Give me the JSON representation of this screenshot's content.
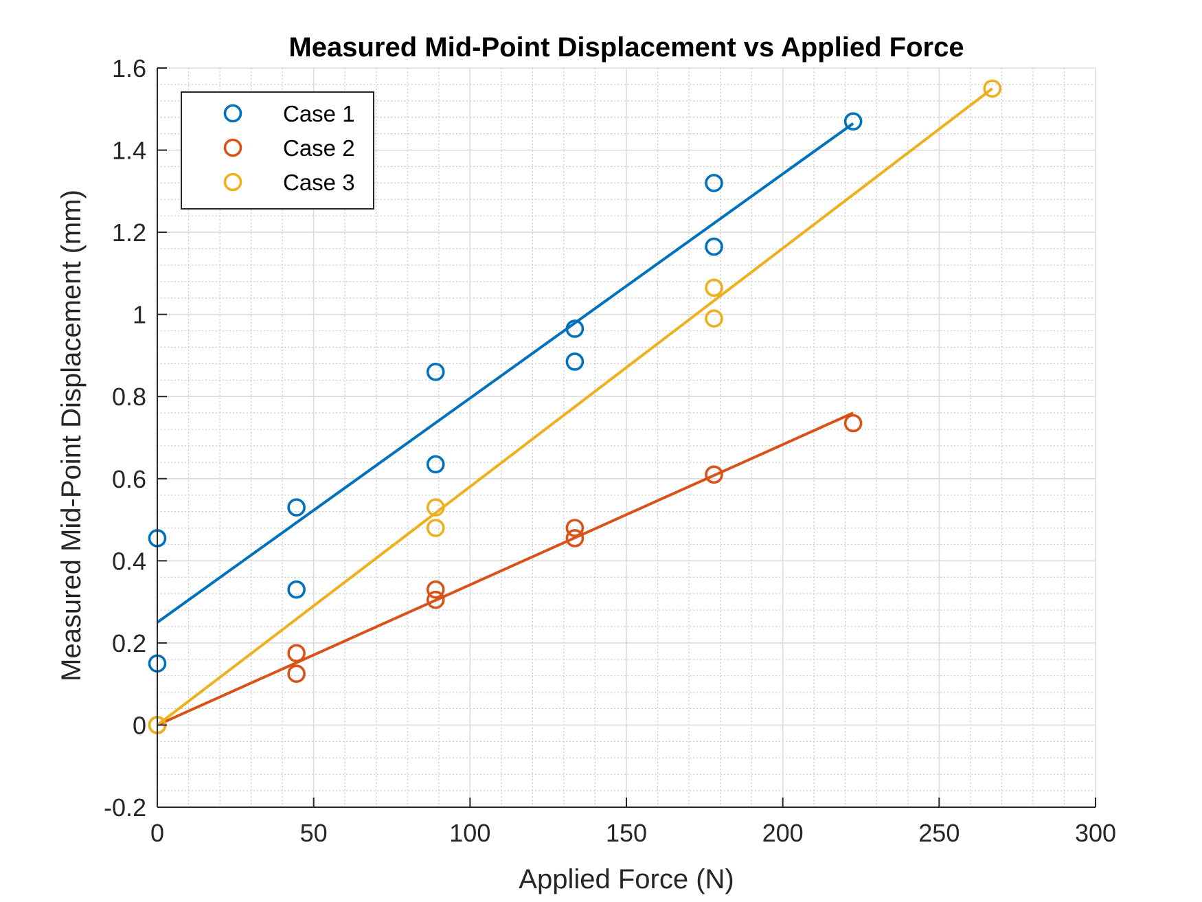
{
  "chart_data": {
    "type": "scatter",
    "title": "Measured Mid-Point Displacement vs Applied Force",
    "xlabel": "Applied Force (N)",
    "ylabel": "Measured Mid-Point Displacement (mm)",
    "xlim": [
      0,
      300
    ],
    "ylim": [
      -0.2,
      1.6
    ],
    "xticks": [
      0,
      50,
      100,
      150,
      200,
      250,
      300
    ],
    "yticks": [
      -0.2,
      0,
      0.2,
      0.4,
      0.6,
      0.8,
      1,
      1.2,
      1.4,
      1.6
    ],
    "xtick_labels": [
      "0",
      "50",
      "100",
      "150",
      "200",
      "250",
      "300"
    ],
    "ytick_labels": [
      "-0.2",
      "0",
      "0.2",
      "0.4",
      "0.6",
      "0.8",
      "1",
      "1.2",
      "1.4",
      "1.6"
    ],
    "grid": true,
    "minor_grid": true,
    "legend_position": "top-left",
    "series": [
      {
        "name": "Case 1",
        "color": "#0072BD",
        "points": [
          {
            "x": 0,
            "y": 0.455
          },
          {
            "x": 0,
            "y": 0.15
          },
          {
            "x": 44.5,
            "y": 0.53
          },
          {
            "x": 44.5,
            "y": 0.33
          },
          {
            "x": 89,
            "y": 0.86
          },
          {
            "x": 89,
            "y": 0.635
          },
          {
            "x": 133.5,
            "y": 0.965
          },
          {
            "x": 133.5,
            "y": 0.885
          },
          {
            "x": 178,
            "y": 1.32
          },
          {
            "x": 178,
            "y": 1.165
          },
          {
            "x": 222.5,
            "y": 1.47
          }
        ],
        "fit": {
          "x": [
            0,
            222.5
          ],
          "y": [
            0.25,
            1.465
          ]
        }
      },
      {
        "name": "Case 2",
        "color": "#D95319",
        "points": [
          {
            "x": 0,
            "y": 0
          },
          {
            "x": 44.5,
            "y": 0.175
          },
          {
            "x": 44.5,
            "y": 0.125
          },
          {
            "x": 89,
            "y": 0.33
          },
          {
            "x": 89,
            "y": 0.305
          },
          {
            "x": 133.5,
            "y": 0.48
          },
          {
            "x": 133.5,
            "y": 0.455
          },
          {
            "x": 178,
            "y": 0.61
          },
          {
            "x": 222.5,
            "y": 0.735
          }
        ],
        "fit": {
          "x": [
            0,
            222.5
          ],
          "y": [
            0,
            0.76
          ]
        }
      },
      {
        "name": "Case 3",
        "color": "#EDB120",
        "points": [
          {
            "x": 0,
            "y": 0
          },
          {
            "x": 89,
            "y": 0.53
          },
          {
            "x": 89,
            "y": 0.48
          },
          {
            "x": 178,
            "y": 1.065
          },
          {
            "x": 178,
            "y": 0.99
          },
          {
            "x": 267,
            "y": 1.55
          }
        ],
        "fit": {
          "x": [
            0,
            267
          ],
          "y": [
            0,
            1.55
          ]
        }
      }
    ]
  }
}
